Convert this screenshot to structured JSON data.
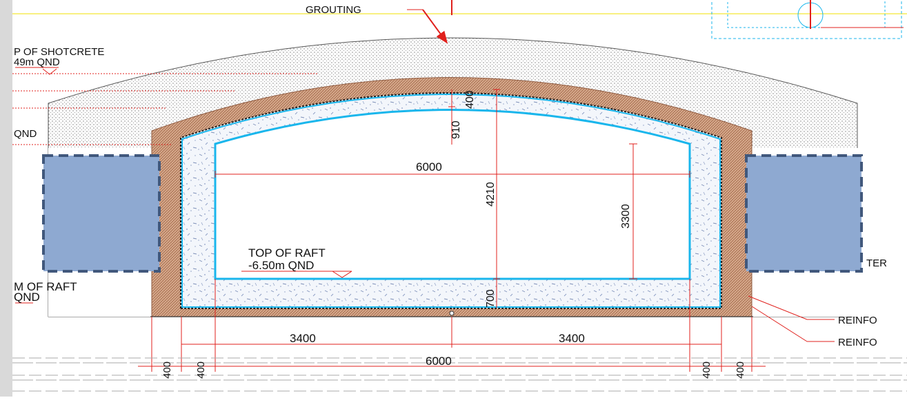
{
  "labels": {
    "grouting": "GROUTING",
    "top_shotcrete_1": "P OF SHOTCRETE",
    "top_shotcrete_2": "49m QND",
    "qnd_left": "QND",
    "top_raft_1": "TOP OF RAFT",
    "top_raft_2": "-6.50m QND",
    "bottom_raft_1": "M OF RAFT",
    "bottom_raft_2": "QND",
    "ter": "TER",
    "reinfo_1": "REINFO",
    "reinfo_2": "REINFO"
  },
  "dimensions": {
    "crown_top": "400",
    "crown_rise": "910",
    "inner_width": "6000",
    "inner_height": "4210",
    "wall_height": "3300",
    "raft_thickness": "700",
    "half_left": "3400",
    "half_right": "3400",
    "total_width": "6000",
    "d400_a": "400",
    "d400_b": "400",
    "d400_c": "400",
    "d400_d": "400"
  },
  "colors": {
    "background": "#ffffff",
    "left_margin": "#d9d9d9",
    "dimension_red": "#e0201c",
    "structure_cyan": "#19b6ec",
    "fill_blue": "#8ea9d1",
    "fill_border": "#41587c",
    "brick": "#c9997a",
    "guide_yellow": "#f2e200"
  }
}
